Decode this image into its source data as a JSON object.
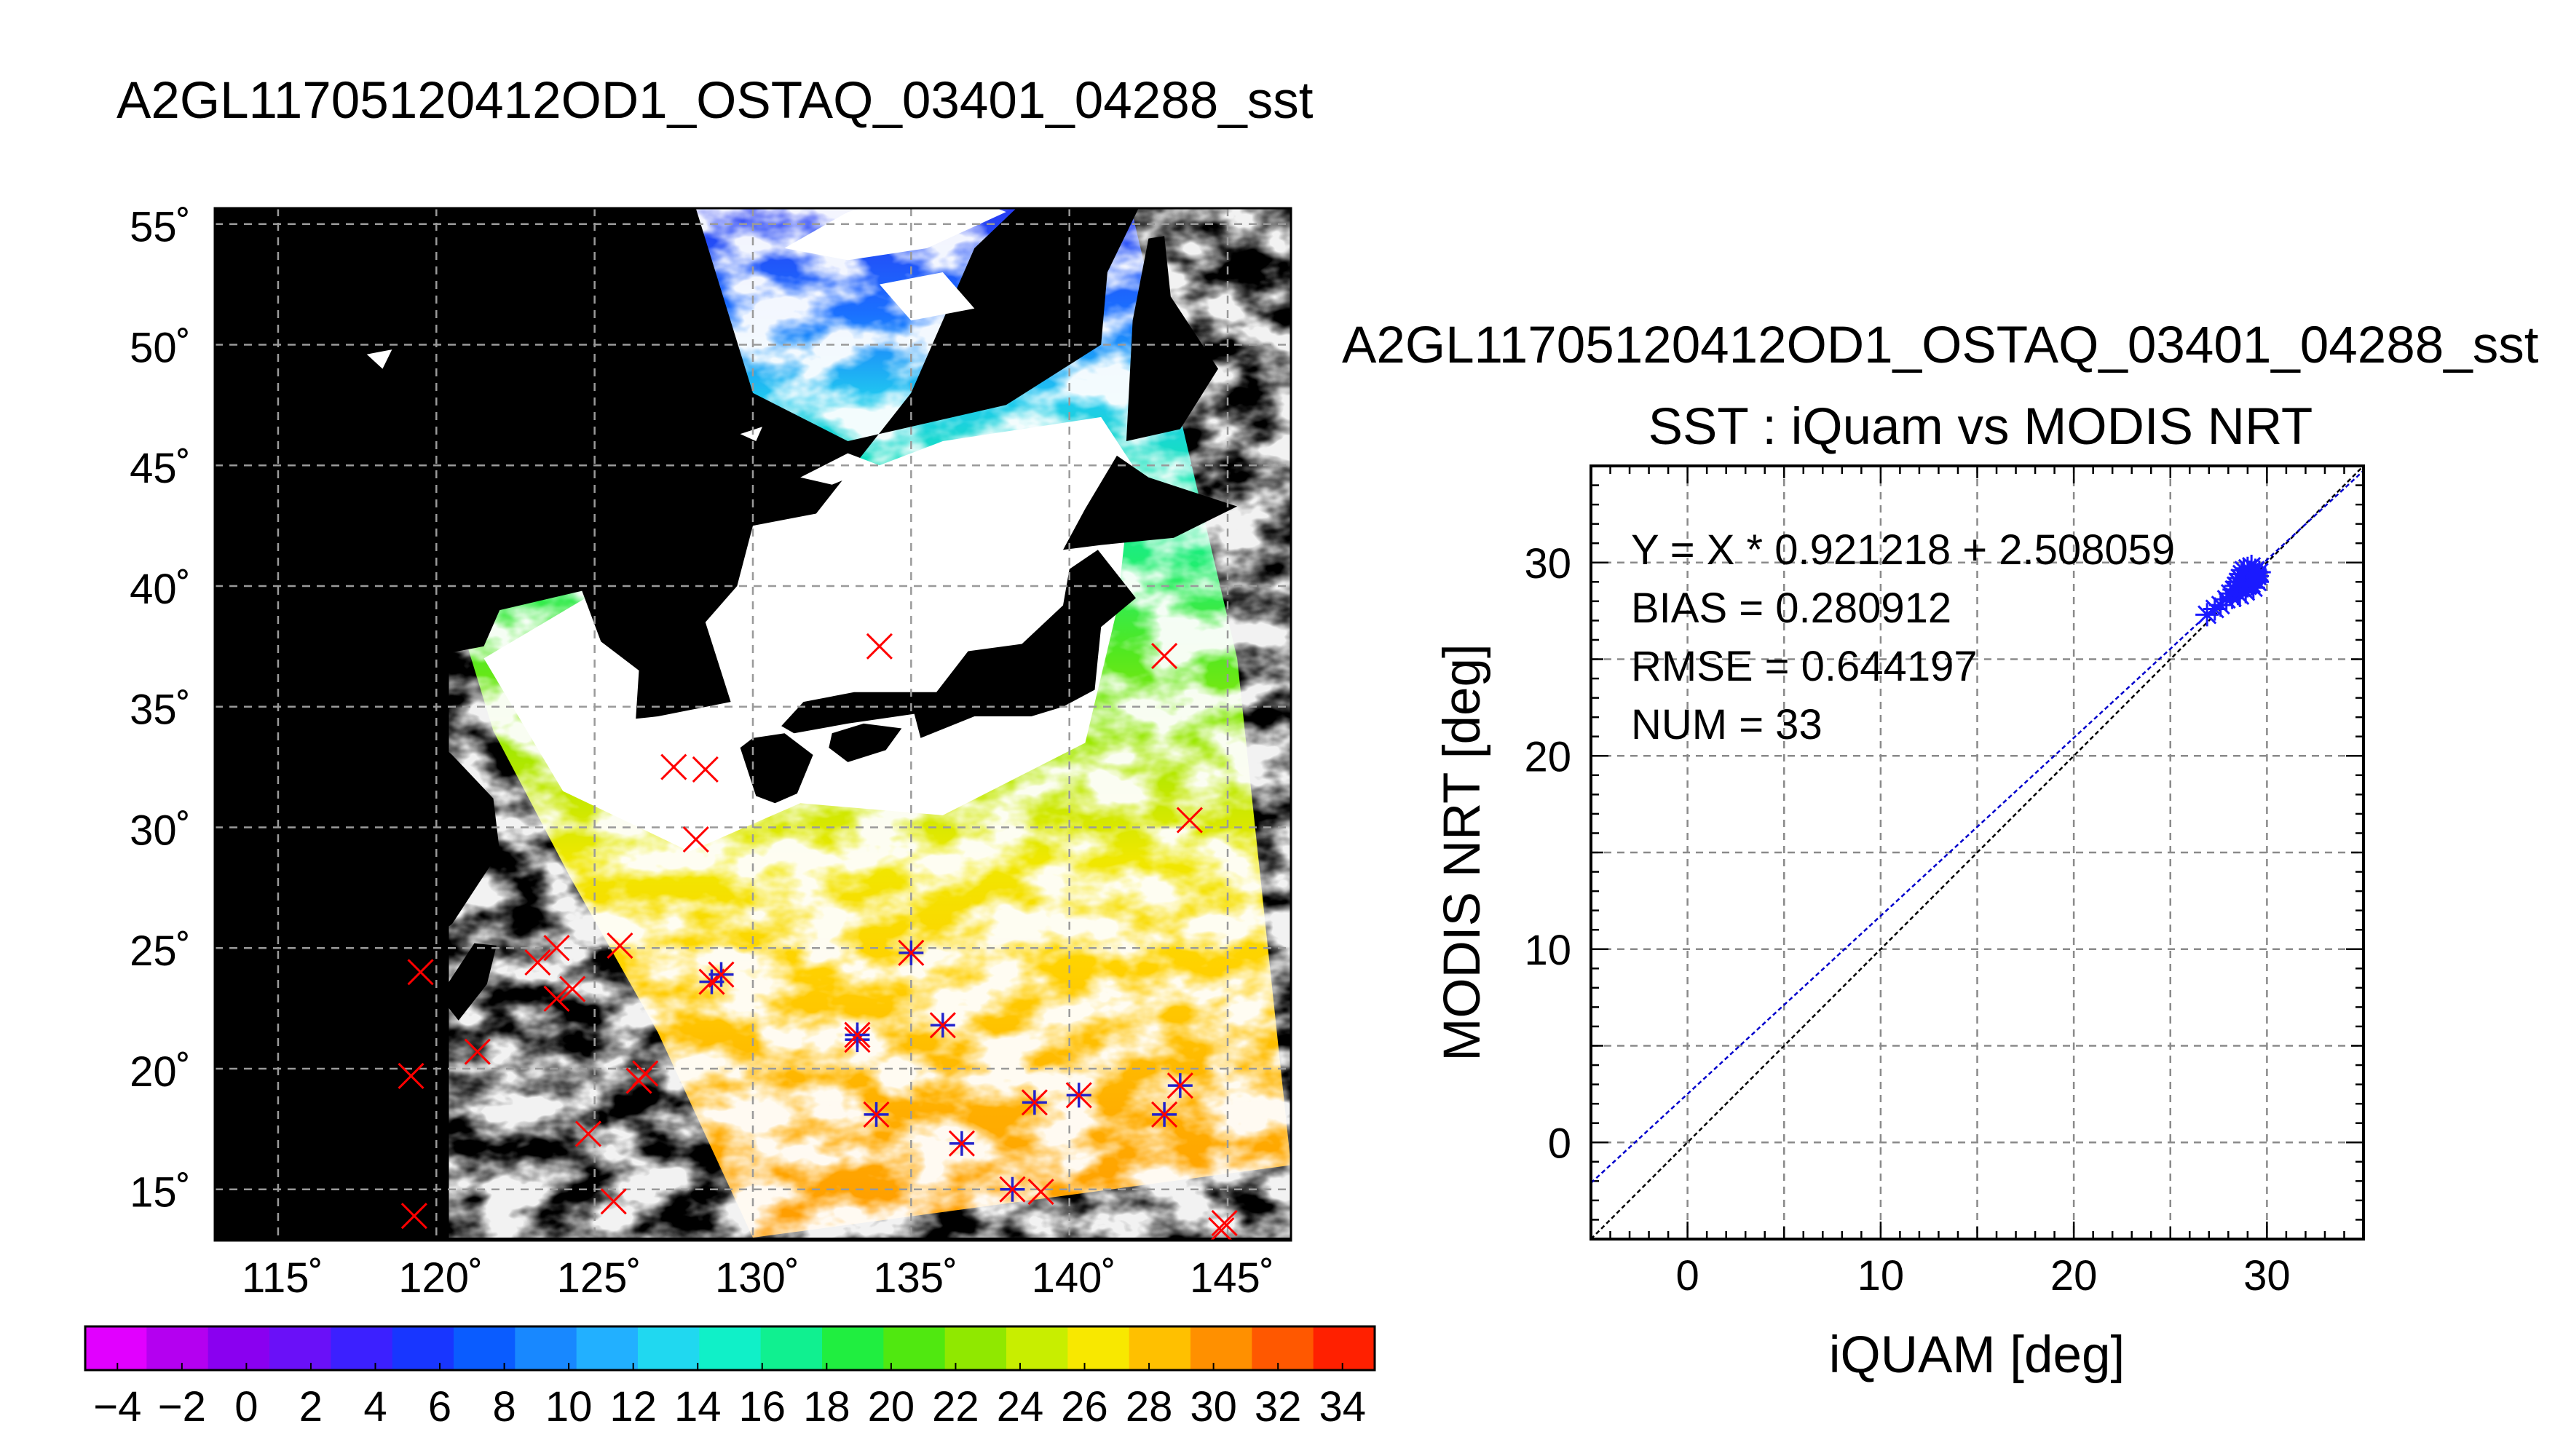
{
  "map_title": "A2GL11705120412OD1_OSTAQ_03401_04288_sst",
  "map": {
    "lon_ticks": [
      115,
      120,
      125,
      130,
      135,
      140,
      145
    ],
    "lat_ticks": [
      15,
      20,
      25,
      30,
      35,
      40,
      45,
      50,
      55
    ],
    "lon_range": [
      113,
      147
    ],
    "lat_range": [
      13,
      56
    ],
    "degree_symbol": "˚",
    "colors": {
      "background": "#000000",
      "cloud": "#ffffff",
      "grid": "#9a9a9a",
      "cross": "#ff0000",
      "star": "#2222cc"
    },
    "matchups": [
      {
        "lon": 119.3,
        "lat": 13.9,
        "star": false
      },
      {
        "lon": 119.2,
        "lat": 19.7,
        "star": false
      },
      {
        "lon": 119.5,
        "lat": 24.0,
        "star": false
      },
      {
        "lon": 121.3,
        "lat": 20.7,
        "star": false
      },
      {
        "lon": 123.2,
        "lat": 24.4,
        "star": false
      },
      {
        "lon": 123.8,
        "lat": 25.0,
        "star": false
      },
      {
        "lon": 123.8,
        "lat": 22.9,
        "star": false
      },
      {
        "lon": 124.3,
        "lat": 23.3,
        "star": false
      },
      {
        "lon": 124.8,
        "lat": 17.3,
        "star": false
      },
      {
        "lon": 125.6,
        "lat": 14.5,
        "star": false
      },
      {
        "lon": 125.8,
        "lat": 25.1,
        "star": false
      },
      {
        "lon": 126.4,
        "lat": 19.5,
        "star": false
      },
      {
        "lon": 126.6,
        "lat": 19.8,
        "star": false
      },
      {
        "lon": 127.5,
        "lat": 32.5,
        "star": false
      },
      {
        "lon": 128.5,
        "lat": 32.4,
        "star": false
      },
      {
        "lon": 128.2,
        "lat": 29.5,
        "star": false
      },
      {
        "lon": 128.7,
        "lat": 23.6,
        "star": true
      },
      {
        "lon": 129.0,
        "lat": 23.9,
        "star": true
      },
      {
        "lon": 133.3,
        "lat": 21.2,
        "star": true
      },
      {
        "lon": 133.3,
        "lat": 21.4,
        "star": true
      },
      {
        "lon": 133.9,
        "lat": 18.1,
        "star": true
      },
      {
        "lon": 134.0,
        "lat": 37.5,
        "star": false
      },
      {
        "lon": 135.0,
        "lat": 24.8,
        "star": true
      },
      {
        "lon": 136.0,
        "lat": 21.8,
        "star": true
      },
      {
        "lon": 136.6,
        "lat": 16.9,
        "star": true
      },
      {
        "lon": 138.2,
        "lat": 15.0,
        "star": true
      },
      {
        "lon": 138.9,
        "lat": 18.6,
        "star": true
      },
      {
        "lon": 139.1,
        "lat": 14.9,
        "star": false
      },
      {
        "lon": 140.3,
        "lat": 18.9,
        "star": true
      },
      {
        "lon": 143.0,
        "lat": 37.1,
        "star": false
      },
      {
        "lon": 143.0,
        "lat": 18.1,
        "star": true
      },
      {
        "lon": 143.5,
        "lat": 19.3,
        "star": true
      },
      {
        "lon": 143.8,
        "lat": 30.3,
        "star": false
      },
      {
        "lon": 144.8,
        "lat": 13.3,
        "star": false
      },
      {
        "lon": 144.9,
        "lat": 13.6,
        "star": false
      }
    ]
  },
  "colorbar": {
    "min": -5,
    "max": 35,
    "tick_labels": [
      "−4",
      "−2",
      "0",
      "2",
      "4",
      "6",
      "8",
      "10",
      "12",
      "14",
      "16",
      "18",
      "20",
      "22",
      "24",
      "26",
      "28",
      "30",
      "32",
      "34"
    ],
    "tick_values": [
      -4,
      -2,
      0,
      2,
      4,
      6,
      8,
      10,
      12,
      14,
      16,
      18,
      20,
      22,
      24,
      26,
      28,
      30,
      32,
      34
    ],
    "colors": [
      "#e100ff",
      "#b400f0",
      "#8a00f0",
      "#6a10f8",
      "#3c20ff",
      "#1836ff",
      "#0a5cff",
      "#1888ff",
      "#22b0ff",
      "#20d8f0",
      "#10f0c8",
      "#10f090",
      "#20ee40",
      "#50e810",
      "#90e800",
      "#c8ee00",
      "#f8e800",
      "#ffc000",
      "#ff9000",
      "#ff5800",
      "#ff2000"
    ]
  },
  "chart_data": {
    "type": "scatter",
    "title": "A2GL11705120412OD1_OSTAQ_03401_04288_sst",
    "subtitle": "SST : iQuam vs MODIS NRT",
    "xlabel": "iQUAM [deg]",
    "ylabel": "MODIS NRT [deg]",
    "xlim": [
      -5,
      35
    ],
    "ylim": [
      -5,
      35
    ],
    "x_ticks": [
      0,
      10,
      20,
      30
    ],
    "y_ticks": [
      0,
      10,
      20,
      30
    ],
    "grid": true,
    "annotations": [
      "Y = X * 0.921218 + 2.508059",
      "BIAS = 0.280912",
      "RMSE = 0.644197",
      "NUM = 33"
    ],
    "fit": {
      "slope": 0.921218,
      "intercept": 2.508059,
      "color": "#0000cc"
    },
    "identity_color": "#000000",
    "point_color": "#1a1aff",
    "points": [
      {
        "x": 26.9,
        "y": 27.3
      },
      {
        "x": 27.3,
        "y": 27.6
      },
      {
        "x": 27.6,
        "y": 27.8
      },
      {
        "x": 27.9,
        "y": 28.1
      },
      {
        "x": 28.1,
        "y": 28.4
      },
      {
        "x": 28.2,
        "y": 28.2
      },
      {
        "x": 28.3,
        "y": 28.6
      },
      {
        "x": 28.4,
        "y": 28.8
      },
      {
        "x": 28.5,
        "y": 29.0
      },
      {
        "x": 28.5,
        "y": 28.4
      },
      {
        "x": 28.6,
        "y": 29.2
      },
      {
        "x": 28.7,
        "y": 28.7
      },
      {
        "x": 28.7,
        "y": 29.4
      },
      {
        "x": 28.8,
        "y": 28.9
      },
      {
        "x": 28.9,
        "y": 29.1
      },
      {
        "x": 28.9,
        "y": 28.5
      },
      {
        "x": 29.0,
        "y": 29.3
      },
      {
        "x": 29.0,
        "y": 28.8
      },
      {
        "x": 29.1,
        "y": 29.0
      },
      {
        "x": 29.1,
        "y": 29.5
      },
      {
        "x": 29.2,
        "y": 28.9
      },
      {
        "x": 29.2,
        "y": 29.2
      },
      {
        "x": 29.3,
        "y": 29.4
      },
      {
        "x": 29.3,
        "y": 28.7
      },
      {
        "x": 29.4,
        "y": 29.1
      },
      {
        "x": 29.4,
        "y": 29.6
      },
      {
        "x": 29.5,
        "y": 29.0
      },
      {
        "x": 29.5,
        "y": 29.3
      },
      {
        "x": 29.6,
        "y": 29.5
      },
      {
        "x": 28.8,
        "y": 29.6
      },
      {
        "x": 29.0,
        "y": 29.7
      },
      {
        "x": 28.6,
        "y": 28.3
      },
      {
        "x": 29.2,
        "y": 29.8
      }
    ]
  }
}
